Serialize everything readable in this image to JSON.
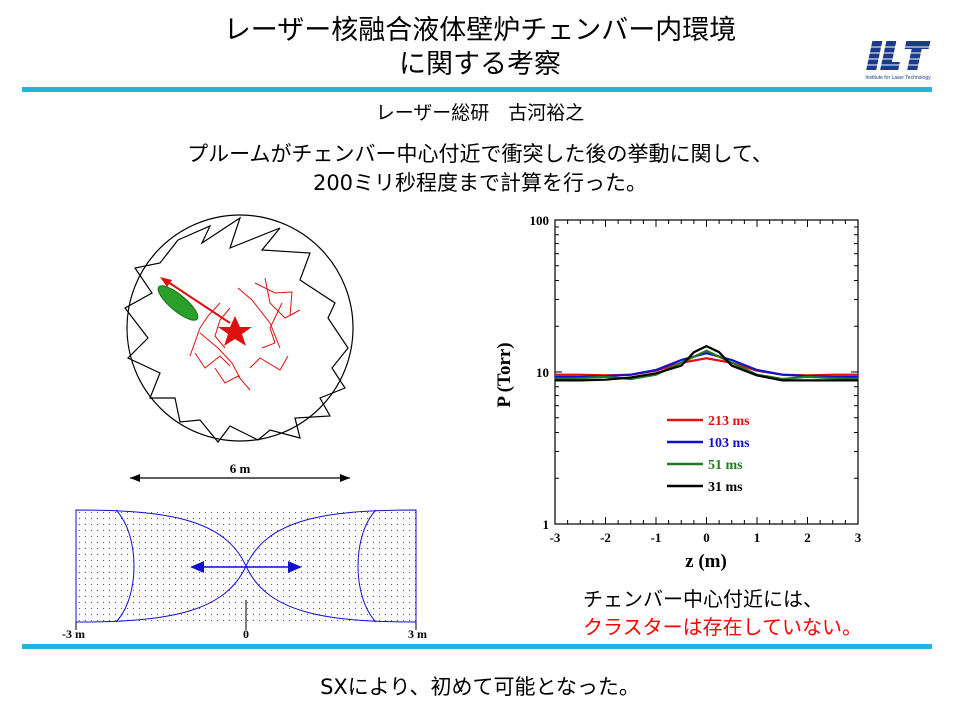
{
  "title": {
    "line1": "レーザー核融合液体壁炉チェンバー内環境",
    "line2": "に関する考察"
  },
  "logo": {
    "letters": "ILT",
    "caption": "Institute for Laser Technology"
  },
  "author": "レーザー総研　古河裕之",
  "intro": {
    "line1": "プルームがチェンバー中心付近で衝突した後の挙動に関して、",
    "line2": "200ミリ秒程度まで計算を行った。"
  },
  "diagram": {
    "scale_label": "6 m",
    "axis_left": "-3 m",
    "axis_mid": "0",
    "axis_right": "3 m"
  },
  "chart_data": {
    "type": "line",
    "ylabel": "P (Torr)",
    "xlabel": "z (m)",
    "xlim": [
      -3,
      3
    ],
    "ylim": [
      1,
      100
    ],
    "yscale": "log",
    "x_ticks": [
      "-3",
      "-2",
      "-1",
      "0",
      "1",
      "2",
      "3"
    ],
    "y_ticks": [
      "1",
      "10",
      "100"
    ],
    "legend_position": "lower-center",
    "series": [
      {
        "name": "213 ms",
        "color": "#e01010",
        "x": [
          -3,
          -2.5,
          -2,
          -1.5,
          -1,
          -0.5,
          0,
          0.5,
          1,
          1.5,
          2,
          2.5,
          3
        ],
        "y": [
          9.6,
          9.6,
          9.5,
          9.6,
          10.2,
          11.5,
          12.3,
          11.5,
          10.2,
          9.6,
          9.5,
          9.6,
          9.6
        ]
      },
      {
        "name": "103 ms",
        "color": "#1010d0",
        "x": [
          -3,
          -2.5,
          -2,
          -1.5,
          -1,
          -0.5,
          0,
          0.5,
          1,
          1.5,
          2,
          2.5,
          3
        ],
        "y": [
          9.3,
          9.3,
          9.4,
          9.6,
          10.3,
          12.0,
          13.3,
          12.0,
          10.3,
          9.6,
          9.4,
          9.3,
          9.3
        ]
      },
      {
        "name": "51 ms",
        "color": "#207a20",
        "x": [
          -3,
          -2.5,
          -2,
          -1.5,
          -1,
          -0.5,
          0,
          0.5,
          1,
          1.5,
          2,
          2.5,
          3
        ],
        "y": [
          9.0,
          9.1,
          9.3,
          9.0,
          9.6,
          11.5,
          13.8,
          11.5,
          9.6,
          9.0,
          9.3,
          9.1,
          9.0
        ]
      },
      {
        "name": "31 ms",
        "color": "#000000",
        "x": [
          -3,
          -2.5,
          -2,
          -1.5,
          -1,
          -0.5,
          -0.25,
          0,
          0.25,
          0.5,
          1,
          1.5,
          2,
          2.5,
          3
        ],
        "y": [
          8.8,
          8.8,
          8.9,
          9.2,
          9.8,
          11.0,
          13.5,
          14.8,
          13.5,
          11.0,
          9.5,
          8.8,
          8.8,
          8.8,
          8.8
        ]
      }
    ]
  },
  "conclusion": {
    "line1": "チェンバー中心付近には、",
    "line2": "クラスターは存在していない。"
  },
  "footer": "SXにより、初めて可能となった。",
  "colors": {
    "rule": "#22b4dd",
    "highlight": "#ff0000",
    "logo": "#1a3a8a"
  }
}
